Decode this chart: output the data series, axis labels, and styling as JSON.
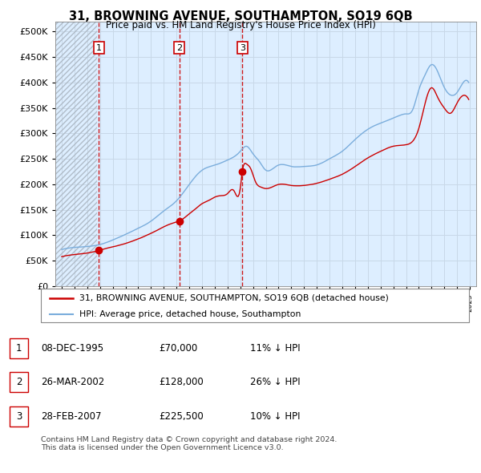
{
  "title": "31, BROWNING AVENUE, SOUTHAMPTON, SO19 6QB",
  "subtitle": "Price paid vs. HM Land Registry's House Price Index (HPI)",
  "ytick_values": [
    0,
    50000,
    100000,
    150000,
    200000,
    250000,
    300000,
    350000,
    400000,
    450000,
    500000
  ],
  "ylim": [
    0,
    520000
  ],
  "xlim_start": 1992.5,
  "xlim_end": 2025.5,
  "hatch_end": 1995.75,
  "sales": [
    {
      "year": 1995.92,
      "price": 70000,
      "label": "1"
    },
    {
      "year": 2002.23,
      "price": 128000,
      "label": "2"
    },
    {
      "year": 2007.16,
      "price": 225500,
      "label": "3"
    }
  ],
  "sale_vlines": [
    1995.92,
    2002.23,
    2007.16
  ],
  "legend_line1": "31, BROWNING AVENUE, SOUTHAMPTON, SO19 6QB (detached house)",
  "legend_line2": "HPI: Average price, detached house, Southampton",
  "table_rows": [
    {
      "num": "1",
      "date": "08-DEC-1995",
      "price": "£70,000",
      "hpi": "11% ↓ HPI"
    },
    {
      "num": "2",
      "date": "26-MAR-2002",
      "price": "£128,000",
      "hpi": "26% ↓ HPI"
    },
    {
      "num": "3",
      "date": "28-FEB-2007",
      "price": "£225,500",
      "hpi": "10% ↓ HPI"
    }
  ],
  "footnote": "Contains HM Land Registry data © Crown copyright and database right 2024.\nThis data is licensed under the Open Government Licence v3.0.",
  "hpi_color": "#7aaddc",
  "sale_color": "#cc0000",
  "grid_color": "#c8d8e8",
  "background_chart": "#ddeeff",
  "hatch_color": "#c0c8d0"
}
